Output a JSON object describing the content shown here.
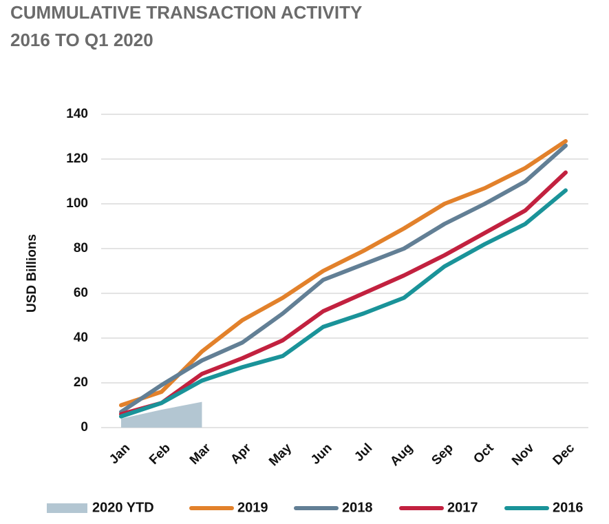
{
  "chart_data": {
    "type": "line",
    "title": "CUMMULATIVE TRANSACTION ACTIVITY",
    "subtitle": "2016 TO Q1 2020",
    "y_label": "USD Billions",
    "categories": [
      "Jan",
      "Feb",
      "Mar",
      "Apr",
      "May",
      "Jun",
      "Jul",
      "Aug",
      "Sep",
      "Oct",
      "Nov",
      "Dec"
    ],
    "ylim": [
      0,
      140
    ],
    "yticks": [
      0,
      20,
      40,
      60,
      80,
      100,
      120,
      140
    ],
    "grid": true,
    "legend": "bottom",
    "series": [
      {
        "name": "2020 YTD",
        "type": "area",
        "color": "#b3c6d2",
        "values": [
          4,
          8,
          11.5,
          null,
          null,
          null,
          null,
          null,
          null,
          null,
          null,
          null
        ]
      },
      {
        "name": "2019",
        "color": "#e2812b",
        "values": [
          10,
          16,
          34,
          48,
          58,
          70,
          79,
          89,
          100,
          107,
          116,
          128
        ]
      },
      {
        "name": "2018",
        "color": "#627f95",
        "values": [
          7,
          19,
          30,
          38,
          51,
          66,
          73,
          80,
          91,
          100,
          110,
          126
        ]
      },
      {
        "name": "2017",
        "color": "#c2213f",
        "values": [
          6,
          11,
          24,
          31,
          39,
          52,
          60,
          68,
          77,
          87,
          97,
          114
        ]
      },
      {
        "name": "2016",
        "color": "#1a9399",
        "values": [
          5,
          11,
          21,
          27,
          32,
          45,
          51,
          58,
          72,
          82,
          91,
          106
        ]
      }
    ]
  }
}
